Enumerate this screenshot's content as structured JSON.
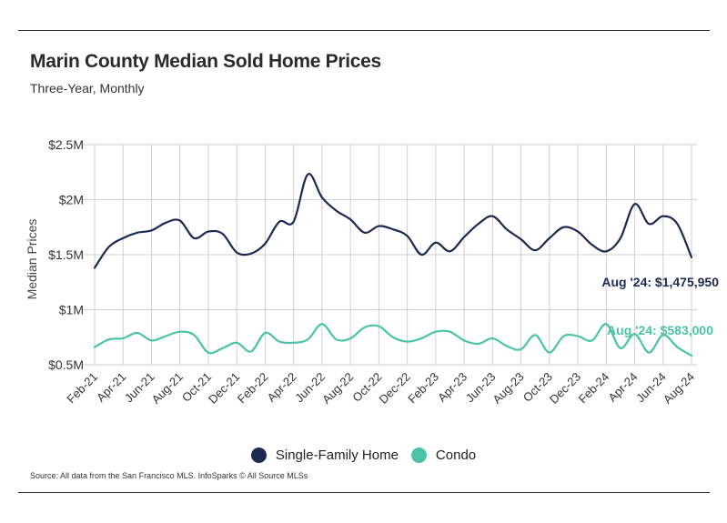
{
  "header": {
    "title": "Marin County Median Sold Home Prices",
    "subtitle": "Three-Year, Monthly"
  },
  "legend": {
    "items": [
      {
        "label": "Single-Family Home",
        "color": "#1d2951"
      },
      {
        "label": "Condo",
        "color": "#4cc3a8"
      }
    ]
  },
  "footer": {
    "source": "Source:  All data from the San Francisco MLS. InfoSparks © All Source MLSs"
  },
  "annotations": {
    "sfh": "Aug '24: $1,475,950",
    "condo": "Aug '24: $583,000"
  },
  "colors": {
    "sfh": "#1d2951",
    "condo": "#4cc3a8",
    "grid": "#cfcfcf"
  },
  "chart_data": {
    "type": "line",
    "title": "Marin County Median Sold Home Prices",
    "subtitle": "Three-Year, Monthly",
    "xlabel": "",
    "ylabel": "Median Prices",
    "ylim": [
      500000,
      2500000
    ],
    "yticks": [
      500000,
      1000000,
      1500000,
      2000000,
      2500000
    ],
    "ytick_labels": [
      "$0.5M",
      "$1M",
      "$1.5M",
      "$2M",
      "$2.5M"
    ],
    "xtick_labels": [
      "Feb-21",
      "Apr-21",
      "Jun-21",
      "Aug-21",
      "Oct-21",
      "Dec-21",
      "Feb-22",
      "Apr-22",
      "Jun-22",
      "Aug-22",
      "Oct-22",
      "Dec-22",
      "Feb-23",
      "Apr-23",
      "Jun-23",
      "Aug-23",
      "Oct-23",
      "Dec-23",
      "Feb-24",
      "Apr-24",
      "Jun-24",
      "Aug-24"
    ],
    "x": [
      "Feb-21",
      "Mar-21",
      "Apr-21",
      "May-21",
      "Jun-21",
      "Jul-21",
      "Aug-21",
      "Sep-21",
      "Oct-21",
      "Nov-21",
      "Dec-21",
      "Jan-22",
      "Feb-22",
      "Mar-22",
      "Apr-22",
      "May-22",
      "Jun-22",
      "Jul-22",
      "Aug-22",
      "Sep-22",
      "Oct-22",
      "Nov-22",
      "Dec-22",
      "Jan-23",
      "Feb-23",
      "Mar-23",
      "Apr-23",
      "May-23",
      "Jun-23",
      "Jul-23",
      "Aug-23",
      "Sep-23",
      "Oct-23",
      "Nov-23",
      "Dec-23",
      "Jan-24",
      "Feb-24",
      "Mar-24",
      "Apr-24",
      "May-24",
      "Jun-24",
      "Jul-24",
      "Aug-24"
    ],
    "grid": true,
    "legend_position": "bottom",
    "series": [
      {
        "name": "Single-Family Home",
        "values": [
          1380000,
          1570000,
          1650000,
          1700000,
          1720000,
          1790000,
          1810000,
          1650000,
          1710000,
          1690000,
          1520000,
          1510000,
          1600000,
          1800000,
          1800000,
          2230000,
          2020000,
          1900000,
          1820000,
          1700000,
          1760000,
          1730000,
          1670000,
          1500000,
          1610000,
          1530000,
          1660000,
          1780000,
          1850000,
          1730000,
          1640000,
          1540000,
          1650000,
          1750000,
          1710000,
          1590000,
          1530000,
          1650000,
          1960000,
          1780000,
          1850000,
          1780000,
          1475950
        ]
      },
      {
        "name": "Condo",
        "values": [
          660000,
          730000,
          740000,
          790000,
          720000,
          760000,
          800000,
          770000,
          610000,
          650000,
          700000,
          620000,
          790000,
          710000,
          700000,
          730000,
          870000,
          730000,
          740000,
          840000,
          850000,
          750000,
          710000,
          740000,
          800000,
          800000,
          720000,
          690000,
          740000,
          670000,
          640000,
          770000,
          610000,
          760000,
          760000,
          720000,
          870000,
          650000,
          780000,
          610000,
          770000,
          660000,
          583000
        ]
      }
    ]
  }
}
